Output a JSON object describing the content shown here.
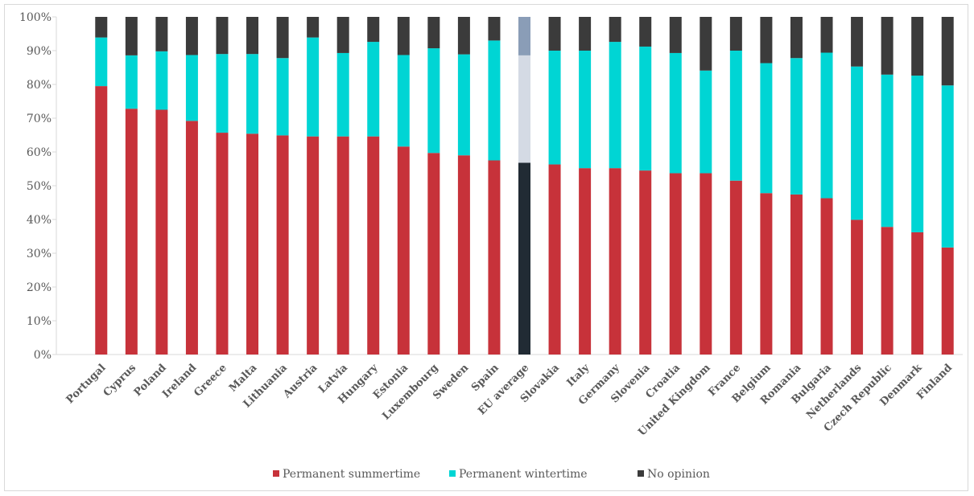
{
  "chart_data": {
    "type": "bar",
    "stacked": true,
    "normalized": true,
    "title": "",
    "xlabel": "",
    "ylabel": "",
    "ylim": [
      0,
      100
    ],
    "yticks": [
      "0%",
      "10%",
      "20%",
      "30%",
      "40%",
      "50%",
      "60%",
      "70%",
      "80%",
      "90%",
      "100%"
    ],
    "grid": false,
    "legend_position": "bottom",
    "categories": [
      "Portugal",
      "Cyprus",
      "Poland",
      "Ireland",
      "Greece",
      "Malta",
      "Lithuania",
      "Austria",
      "Latvia",
      "Hungary",
      "Estonia",
      "Luxembourg",
      "Sweden",
      "Spain",
      "EU average",
      "Slovakia",
      "Italy",
      "Germany",
      "Slovenia",
      "Croatia",
      "United Kingdom",
      "France",
      "Belgium",
      "Romania",
      "Bulgaria",
      "Netherlands",
      "Czech Republic",
      "Denmark",
      "Finland"
    ],
    "highlight_category": "EU average",
    "series": [
      {
        "name": "Permanent summertime",
        "color": "#c7323a",
        "highlight_color": "#212b34",
        "values": [
          79.5,
          72.8,
          72.5,
          69.2,
          65.7,
          65.4,
          64.9,
          64.6,
          64.6,
          64.6,
          61.6,
          59.7,
          59.0,
          57.5,
          56.8,
          56.3,
          55.2,
          55.2,
          54.5,
          53.7,
          53.7,
          51.5,
          47.8,
          47.4,
          46.3,
          39.9,
          37.8,
          36.2,
          31.7
        ]
      },
      {
        "name": "Permanent wintertime",
        "color": "#00d5d4",
        "highlight_color": "#d4dae4",
        "values": [
          14.4,
          15.8,
          17.3,
          19.5,
          23.3,
          23.6,
          22.9,
          29.3,
          24.7,
          28.0,
          27.1,
          31.0,
          29.9,
          35.5,
          31.8,
          33.7,
          34.8,
          37.4,
          36.7,
          35.6,
          30.4,
          38.5,
          38.5,
          40.4,
          43.1,
          45.4,
          45.1,
          46.4,
          48.0
        ]
      },
      {
        "name": "No opinion",
        "color": "#3b3b3b",
        "highlight_color": "#8a9db7",
        "values": [
          6.1,
          11.4,
          10.2,
          11.3,
          11.0,
          11.0,
          12.2,
          6.1,
          10.7,
          7.4,
          11.3,
          9.3,
          11.1,
          7.0,
          11.4,
          10.0,
          10.0,
          7.4,
          8.8,
          10.7,
          15.9,
          10.0,
          13.7,
          12.2,
          10.6,
          14.7,
          17.1,
          17.4,
          20.3
        ]
      }
    ]
  }
}
